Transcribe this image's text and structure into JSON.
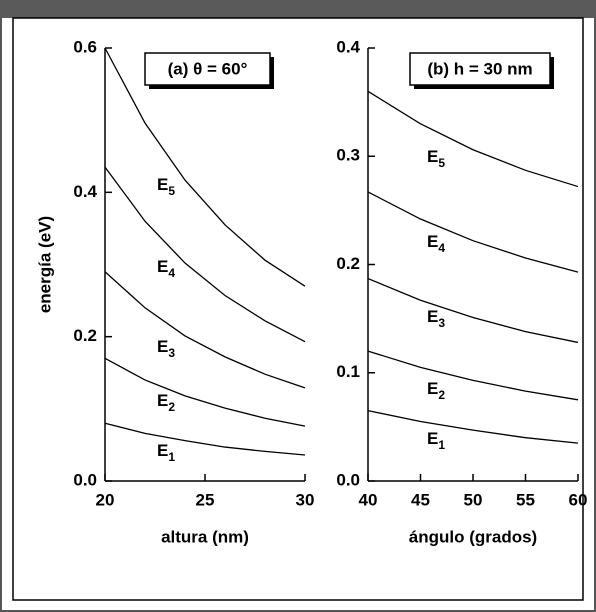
{
  "chart_data": [
    {
      "type": "line",
      "annotation": "(a) θ = 60°",
      "x_label": "altura (nm)",
      "y_label": "energía (eV)",
      "x": [
        20,
        22,
        24,
        26,
        28,
        30
      ],
      "series": [
        {
          "name": "E1",
          "color": "#000000",
          "values": [
            0.08,
            0.066,
            0.056,
            0.047,
            0.041,
            0.036
          ]
        },
        {
          "name": "E2",
          "color": "#000000",
          "values": [
            0.17,
            0.14,
            0.118,
            0.101,
            0.087,
            0.076
          ]
        },
        {
          "name": "E3",
          "color": "#000000",
          "values": [
            0.29,
            0.24,
            0.201,
            0.172,
            0.148,
            0.129
          ]
        },
        {
          "name": "E4",
          "color": "#000000",
          "values": [
            0.435,
            0.36,
            0.302,
            0.257,
            0.222,
            0.193
          ]
        },
        {
          "name": "E5",
          "color": "#000000",
          "values": [
            0.6,
            0.496,
            0.417,
            0.355,
            0.306,
            0.27
          ]
        }
      ],
      "xlim": [
        20,
        30
      ],
      "ylim": [
        0,
        0.6
      ],
      "xticks": [
        20,
        25,
        30
      ],
      "yticks": [
        {
          "value": 0,
          "label": "0.0"
        },
        0.2,
        0.4,
        0.6
      ]
    },
    {
      "type": "line",
      "annotation": "(b) h = 30 nm",
      "x_label": "ángulo (grados)",
      "x": [
        40,
        45,
        50,
        55,
        60
      ],
      "series": [
        {
          "name": "E1",
          "color": "#000000",
          "values": [
            0.065,
            0.055,
            0.047,
            0.04,
            0.035
          ]
        },
        {
          "name": "E2",
          "color": "#000000",
          "values": [
            0.12,
            0.105,
            0.093,
            0.083,
            0.075
          ]
        },
        {
          "name": "E3",
          "color": "#000000",
          "values": [
            0.187,
            0.167,
            0.151,
            0.138,
            0.128
          ]
        },
        {
          "name": "E4",
          "color": "#000000",
          "values": [
            0.267,
            0.242,
            0.222,
            0.206,
            0.193
          ]
        },
        {
          "name": "E5",
          "color": "#000000",
          "values": [
            0.36,
            0.33,
            0.306,
            0.287,
            0.272
          ]
        }
      ],
      "xlim": [
        40,
        60
      ],
      "ylim": [
        0,
        0.4
      ],
      "xticks": [
        40,
        45,
        50,
        55,
        60
      ],
      "yticks": [
        {
          "value": 0,
          "label": "0.0"
        },
        0.1,
        0.2,
        0.3,
        0.4
      ]
    }
  ]
}
